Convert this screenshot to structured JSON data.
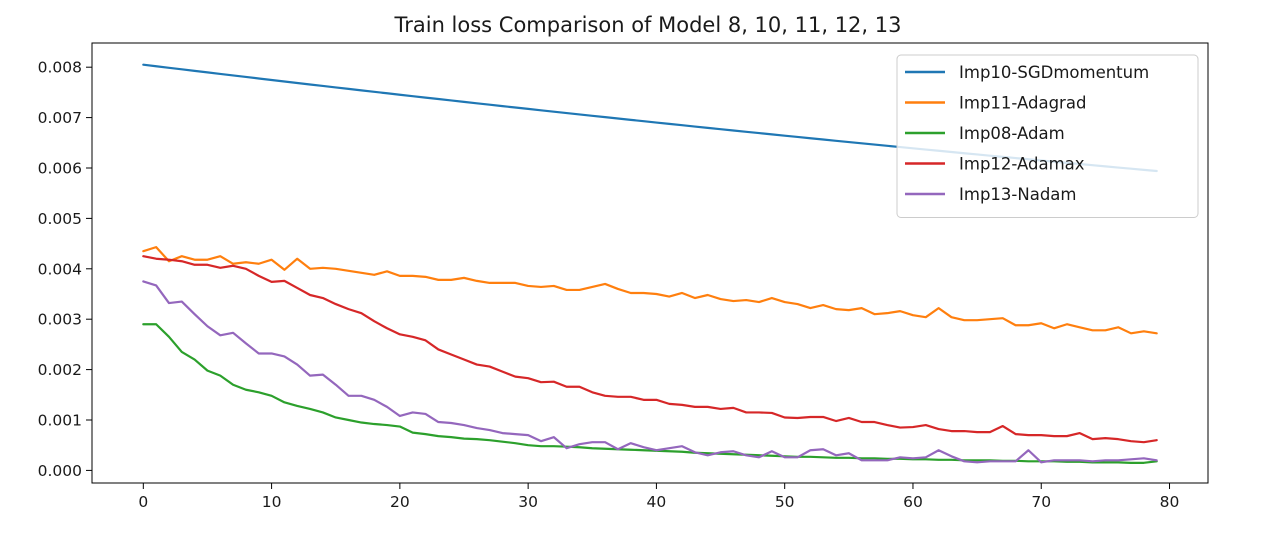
{
  "chart_data": {
    "type": "line",
    "title": "Train loss Comparison of Model 8, 10, 11, 12, 13",
    "xlabel": "",
    "ylabel": "",
    "xlim": [
      -4,
      83
    ],
    "ylim": [
      -0.00025,
      0.00848
    ],
    "x_ticks": [
      0,
      10,
      20,
      30,
      40,
      50,
      60,
      70,
      80
    ],
    "x_tick_labels": [
      "0",
      "10",
      "20",
      "30",
      "40",
      "50",
      "60",
      "70",
      "80"
    ],
    "y_ticks": [
      0.0,
      0.001,
      0.002,
      0.003,
      0.004,
      0.005,
      0.006,
      0.007,
      0.008
    ],
    "y_tick_labels": [
      "0.000",
      "0.001",
      "0.002",
      "0.003",
      "0.004",
      "0.005",
      "0.006",
      "0.007",
      "0.008"
    ],
    "grid": false,
    "legend_position": "top-right",
    "series": [
      {
        "name": "Imp10-SGDmomentum",
        "color": "#1f77b4",
        "x": [
          0,
          79
        ],
        "y": [
          0.00805,
          0.00594
        ],
        "curve": "smooth-decay"
      },
      {
        "name": "Imp11-Adagrad",
        "color": "#ff7f0e",
        "x": [
          0,
          1,
          2,
          3,
          4,
          5,
          6,
          7,
          8,
          9,
          10,
          11,
          12,
          13,
          14,
          15,
          16,
          17,
          18,
          19,
          20,
          21,
          22,
          23,
          24,
          25,
          26,
          27,
          28,
          29,
          30,
          31,
          32,
          33,
          34,
          35,
          36,
          37,
          38,
          39,
          40,
          41,
          42,
          43,
          44,
          45,
          46,
          47,
          48,
          49,
          50,
          51,
          52,
          53,
          54,
          55,
          56,
          57,
          58,
          59,
          60,
          61,
          62,
          63,
          64,
          65,
          66,
          67,
          68,
          69,
          70,
          71,
          72,
          73,
          74,
          75,
          76,
          77,
          78,
          79
        ],
        "y": [
          0.00435,
          0.00443,
          0.00415,
          0.00425,
          0.00418,
          0.00418,
          0.00425,
          0.0041,
          0.00413,
          0.0041,
          0.00418,
          0.00398,
          0.0042,
          0.004,
          0.00402,
          0.004,
          0.00396,
          0.00392,
          0.00388,
          0.00395,
          0.00386,
          0.00386,
          0.00384,
          0.00378,
          0.00378,
          0.00382,
          0.00376,
          0.00372,
          0.00372,
          0.00372,
          0.00366,
          0.00364,
          0.00366,
          0.00358,
          0.00358,
          0.00364,
          0.0037,
          0.0036,
          0.00352,
          0.00352,
          0.0035,
          0.00345,
          0.00352,
          0.00342,
          0.00348,
          0.0034,
          0.00336,
          0.00338,
          0.00334,
          0.00342,
          0.00334,
          0.0033,
          0.00322,
          0.00328,
          0.0032,
          0.00318,
          0.00322,
          0.0031,
          0.00312,
          0.00316,
          0.00308,
          0.00304,
          0.00322,
          0.00304,
          0.00298,
          0.00298,
          0.003,
          0.00302,
          0.00288,
          0.00288,
          0.00292,
          0.00282,
          0.0029,
          0.00284,
          0.00278,
          0.00278,
          0.00284,
          0.00272,
          0.00276,
          0.00272
        ]
      },
      {
        "name": "Imp08-Adam",
        "color": "#2ca02c",
        "x": [
          0,
          1,
          2,
          3,
          4,
          5,
          6,
          7,
          8,
          9,
          10,
          11,
          12,
          13,
          14,
          15,
          16,
          17,
          18,
          19,
          20,
          21,
          22,
          23,
          24,
          25,
          26,
          27,
          28,
          29,
          30,
          31,
          32,
          33,
          34,
          35,
          36,
          37,
          38,
          39,
          40,
          41,
          42,
          43,
          44,
          45,
          46,
          47,
          48,
          49,
          50,
          51,
          52,
          53,
          54,
          55,
          56,
          57,
          58,
          59,
          60,
          61,
          62,
          63,
          64,
          65,
          66,
          67,
          68,
          69,
          70,
          71,
          72,
          73,
          74,
          75,
          76,
          77,
          78,
          79
        ],
        "y": [
          0.0029,
          0.0029,
          0.00265,
          0.00235,
          0.0022,
          0.00198,
          0.00188,
          0.0017,
          0.0016,
          0.00155,
          0.00148,
          0.00135,
          0.00128,
          0.00122,
          0.00115,
          0.00105,
          0.001,
          0.00095,
          0.00092,
          0.0009,
          0.00087,
          0.00075,
          0.00072,
          0.00068,
          0.00066,
          0.00063,
          0.00062,
          0.0006,
          0.00057,
          0.00054,
          0.0005,
          0.00048,
          0.00048,
          0.00047,
          0.00046,
          0.00044,
          0.00043,
          0.00042,
          0.00041,
          0.0004,
          0.00039,
          0.00038,
          0.00037,
          0.00035,
          0.00034,
          0.00033,
          0.00032,
          0.00031,
          0.0003,
          0.00029,
          0.00028,
          0.00027,
          0.00027,
          0.00026,
          0.00025,
          0.00025,
          0.00024,
          0.00024,
          0.00023,
          0.00023,
          0.00022,
          0.00022,
          0.00021,
          0.00021,
          0.0002,
          0.0002,
          0.0002,
          0.00019,
          0.00019,
          0.00018,
          0.00018,
          0.00018,
          0.00017,
          0.00017,
          0.00016,
          0.00016,
          0.00016,
          0.00015,
          0.00015,
          0.00018
        ]
      },
      {
        "name": "Imp12-Adamax",
        "color": "#d62728",
        "x": [
          0,
          1,
          2,
          3,
          4,
          5,
          6,
          7,
          8,
          9,
          10,
          11,
          12,
          13,
          14,
          15,
          16,
          17,
          18,
          19,
          20,
          21,
          22,
          23,
          24,
          25,
          26,
          27,
          28,
          29,
          30,
          31,
          32,
          33,
          34,
          35,
          36,
          37,
          38,
          39,
          40,
          41,
          42,
          43,
          44,
          45,
          46,
          47,
          48,
          49,
          50,
          51,
          52,
          53,
          54,
          55,
          56,
          57,
          58,
          59,
          60,
          61,
          62,
          63,
          64,
          65,
          66,
          67,
          68,
          69,
          70,
          71,
          72,
          73,
          74,
          75,
          76,
          77,
          78,
          79
        ],
        "y": [
          0.00425,
          0.0042,
          0.00418,
          0.00415,
          0.00408,
          0.00408,
          0.00402,
          0.00406,
          0.004,
          0.00386,
          0.00374,
          0.00376,
          0.00362,
          0.00348,
          0.00342,
          0.0033,
          0.0032,
          0.00312,
          0.00296,
          0.00282,
          0.0027,
          0.00265,
          0.00258,
          0.0024,
          0.0023,
          0.0022,
          0.0021,
          0.00206,
          0.00196,
          0.00186,
          0.00183,
          0.00175,
          0.00176,
          0.00166,
          0.00166,
          0.00155,
          0.00148,
          0.00146,
          0.00146,
          0.0014,
          0.0014,
          0.00132,
          0.0013,
          0.00126,
          0.00126,
          0.00122,
          0.00124,
          0.00115,
          0.00115,
          0.00114,
          0.00105,
          0.00104,
          0.00106,
          0.00106,
          0.00098,
          0.00104,
          0.00096,
          0.00096,
          0.0009,
          0.00085,
          0.00086,
          0.0009,
          0.00082,
          0.00078,
          0.00078,
          0.00076,
          0.00076,
          0.00088,
          0.00072,
          0.0007,
          0.0007,
          0.00068,
          0.00068,
          0.00074,
          0.00062,
          0.00064,
          0.00062,
          0.00058,
          0.00056,
          0.0006
        ]
      },
      {
        "name": "Imp13-Nadam",
        "color": "#9467bd",
        "x": [
          0,
          1,
          2,
          3,
          4,
          5,
          6,
          7,
          8,
          9,
          10,
          11,
          12,
          13,
          14,
          15,
          16,
          17,
          18,
          19,
          20,
          21,
          22,
          23,
          24,
          25,
          26,
          27,
          28,
          29,
          30,
          31,
          32,
          33,
          34,
          35,
          36,
          37,
          38,
          39,
          40,
          41,
          42,
          43,
          44,
          45,
          46,
          47,
          48,
          49,
          50,
          51,
          52,
          53,
          54,
          55,
          56,
          57,
          58,
          59,
          60,
          61,
          62,
          63,
          64,
          65,
          66,
          67,
          68,
          69,
          70,
          71,
          72,
          73,
          74,
          75,
          76,
          77,
          78,
          79
        ],
        "y": [
          0.00375,
          0.00367,
          0.00332,
          0.00335,
          0.0031,
          0.00286,
          0.00268,
          0.00273,
          0.00252,
          0.00232,
          0.00232,
          0.00226,
          0.0021,
          0.00188,
          0.0019,
          0.0017,
          0.00148,
          0.00148,
          0.0014,
          0.00126,
          0.00108,
          0.00115,
          0.00112,
          0.00096,
          0.00094,
          0.0009,
          0.00084,
          0.0008,
          0.00074,
          0.00072,
          0.0007,
          0.00058,
          0.00066,
          0.00044,
          0.00052,
          0.00056,
          0.00056,
          0.00042,
          0.00054,
          0.00046,
          0.0004,
          0.00044,
          0.00048,
          0.00036,
          0.0003,
          0.00036,
          0.00038,
          0.0003,
          0.00026,
          0.00038,
          0.00026,
          0.00026,
          0.0004,
          0.00042,
          0.0003,
          0.00034,
          0.0002,
          0.0002,
          0.0002,
          0.00026,
          0.00024,
          0.00026,
          0.0004,
          0.00028,
          0.00018,
          0.00016,
          0.00018,
          0.00018,
          0.00018,
          0.0004,
          0.00016,
          0.0002,
          0.0002,
          0.0002,
          0.00018,
          0.0002,
          0.0002,
          0.00022,
          0.00024,
          0.0002
        ]
      }
    ]
  }
}
